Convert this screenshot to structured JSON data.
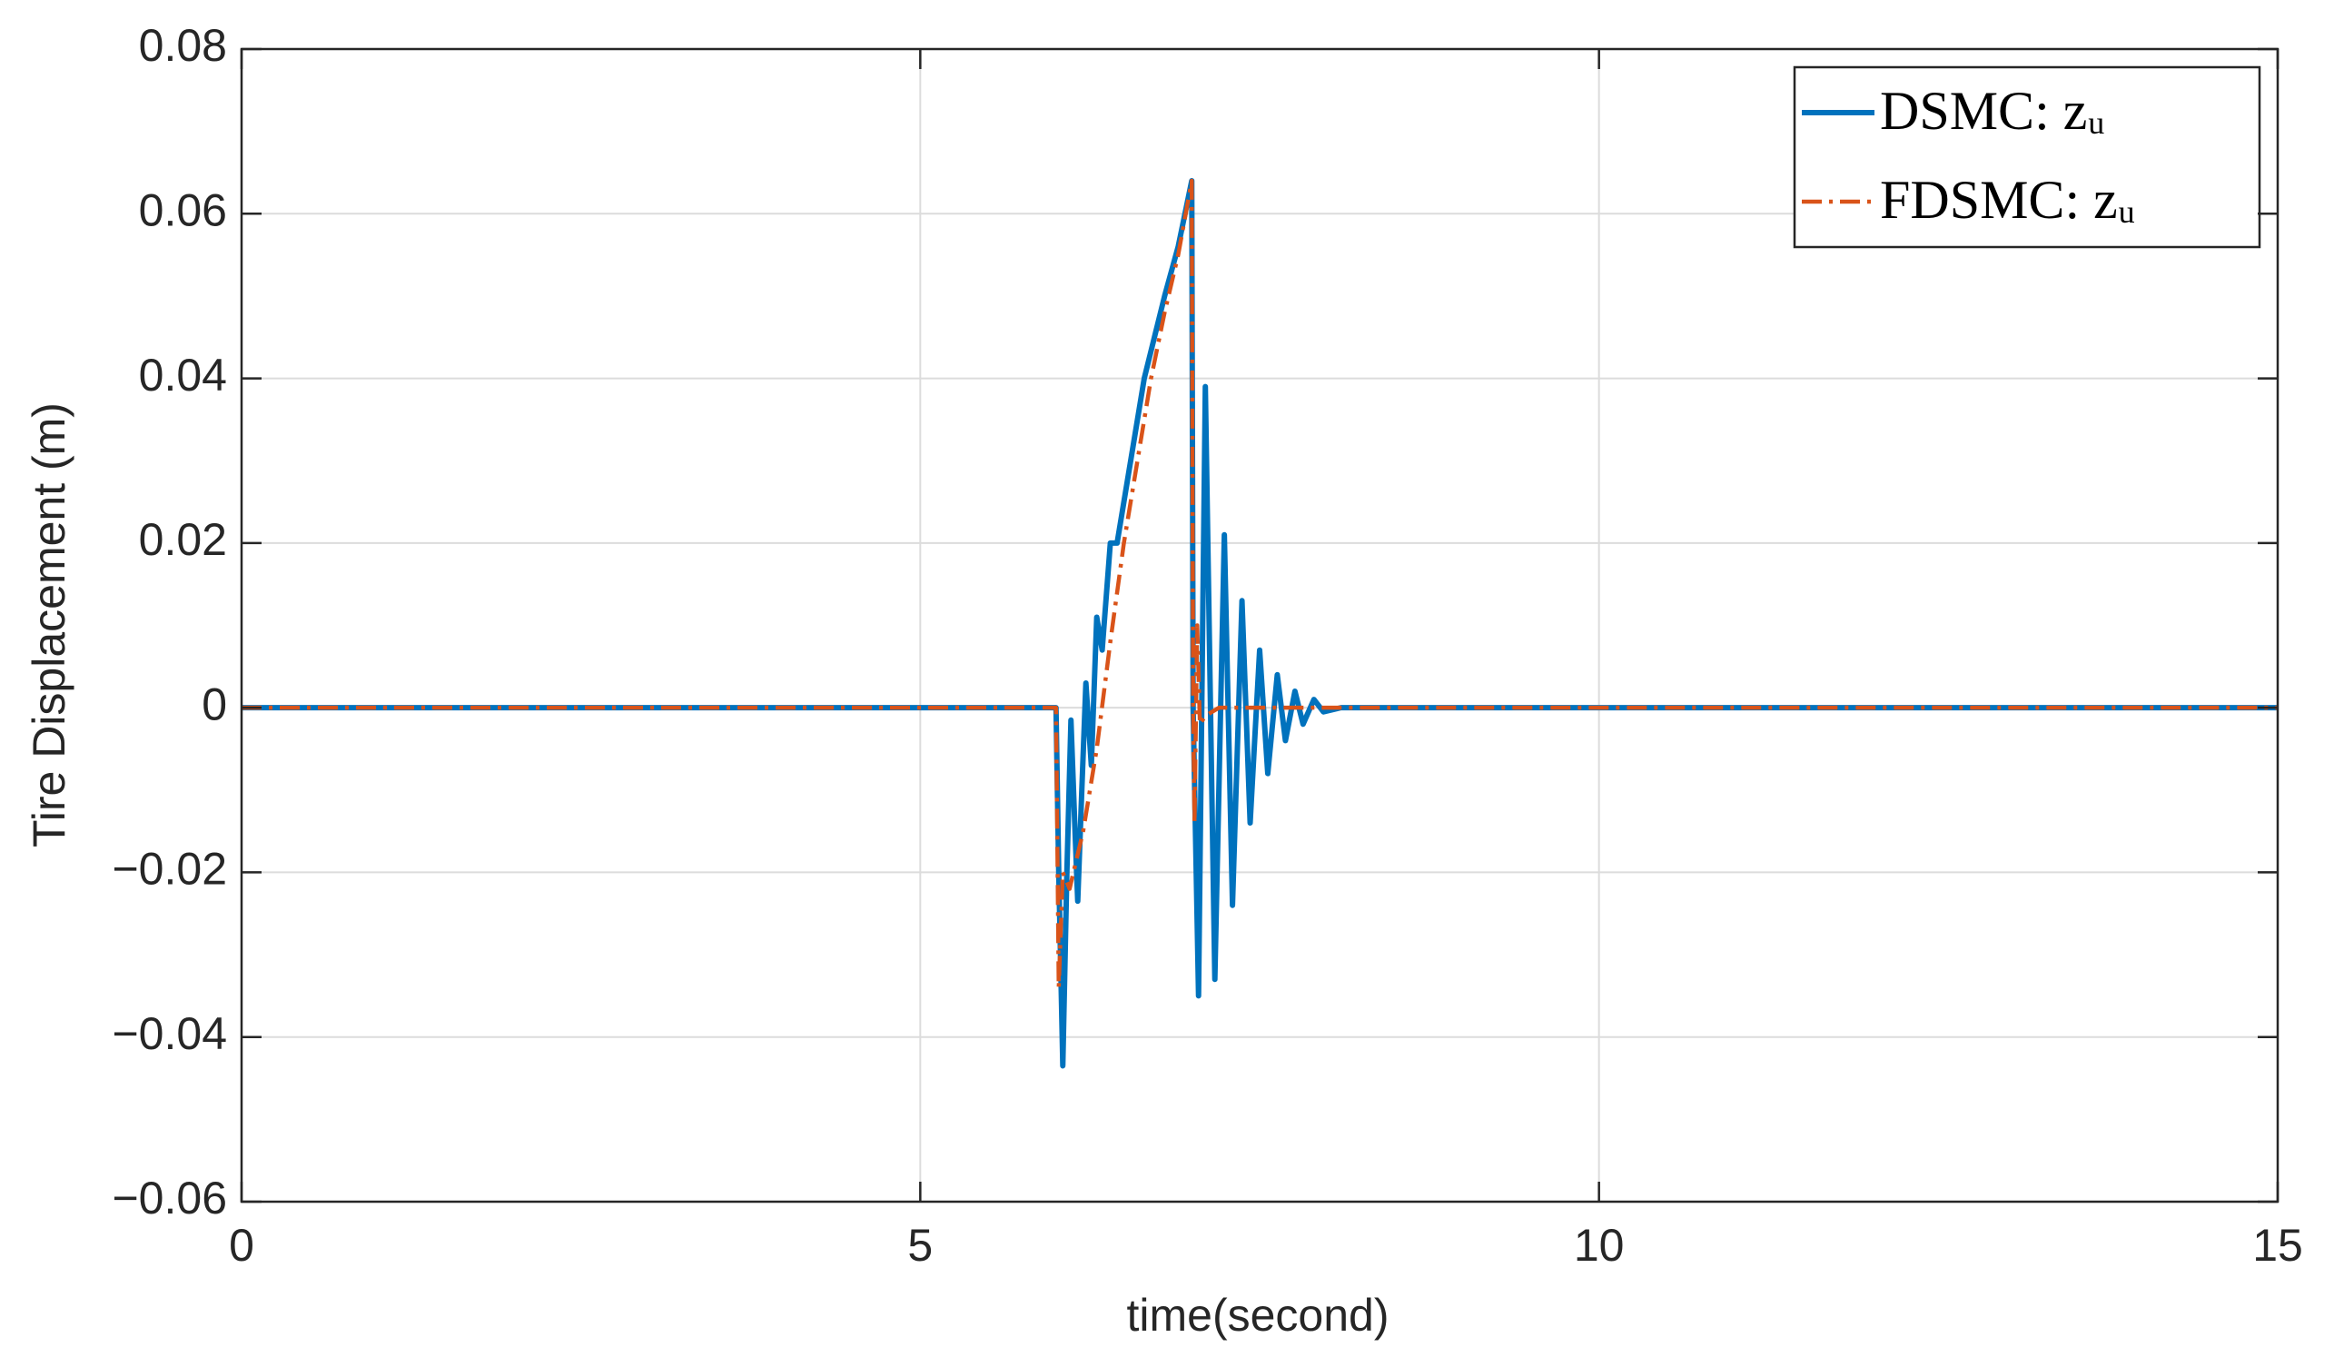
{
  "chart_data": {
    "type": "line",
    "x_label": "time(second)",
    "y_label": "Tire Displacement (m)",
    "xlim": [
      0,
      15
    ],
    "xticks": [
      0,
      5,
      10,
      15
    ],
    "ylim": [
      -0.06,
      0.08
    ],
    "yticks": [
      {
        "value": -0.06,
        "label": "−0.06"
      },
      {
        "value": -0.04,
        "label": "−0.04"
      },
      {
        "value": -0.02,
        "label": "−0.02"
      },
      0,
      0.02,
      0.04,
      0.06,
      0.08
    ],
    "grid": true,
    "legend": "top-right",
    "series": [
      {
        "name": "DSMC: zᵤ",
        "color": "#0072bd",
        "linestyle": "solid",
        "x": [
          0,
          6.0,
          6.02,
          6.05,
          6.08,
          6.11,
          6.14,
          6.16,
          6.19,
          6.22,
          6.26,
          6.3,
          6.34,
          6.4,
          6.45,
          6.55,
          6.65,
          6.8,
          6.9,
          7.0,
          7.01,
          7.05,
          7.1,
          7.17,
          7.24,
          7.3,
          7.37,
          7.43,
          7.5,
          7.56,
          7.63,
          7.69,
          7.76,
          7.82,
          7.9,
          7.97,
          8.1,
          15
        ],
        "values": [
          0,
          0,
          -0.02,
          -0.0435,
          -0.02,
          -0.0015,
          -0.015,
          -0.0235,
          -0.01,
          0.003,
          -0.007,
          0.011,
          0.007,
          0.02,
          0.02,
          0.03,
          0.04,
          0.05,
          0.056,
          0.064,
          0.0,
          -0.035,
          0.039,
          -0.033,
          0.021,
          -0.024,
          0.013,
          -0.014,
          0.007,
          -0.008,
          0.004,
          -0.004,
          0.002,
          -0.002,
          0.001,
          -0.0005,
          0,
          0
        ]
      },
      {
        "name": "FDSMC: zᵤ",
        "color": "#d95319",
        "linestyle": "dashdot",
        "x": [
          0,
          6.0,
          6.02,
          6.05,
          6.1,
          6.2,
          6.3,
          6.4,
          6.5,
          6.6,
          6.7,
          6.8,
          6.9,
          7.0,
          7.01,
          7.02,
          7.04,
          7.06,
          7.1,
          7.2,
          15
        ],
        "values": [
          0,
          0,
          -0.034,
          -0.02,
          -0.022,
          -0.015,
          -0.005,
          0.008,
          0.02,
          0.03,
          0.04,
          0.048,
          0.055,
          0.064,
          0.0,
          -0.014,
          0.01,
          -0.002,
          -0.001,
          0,
          0
        ]
      }
    ]
  }
}
